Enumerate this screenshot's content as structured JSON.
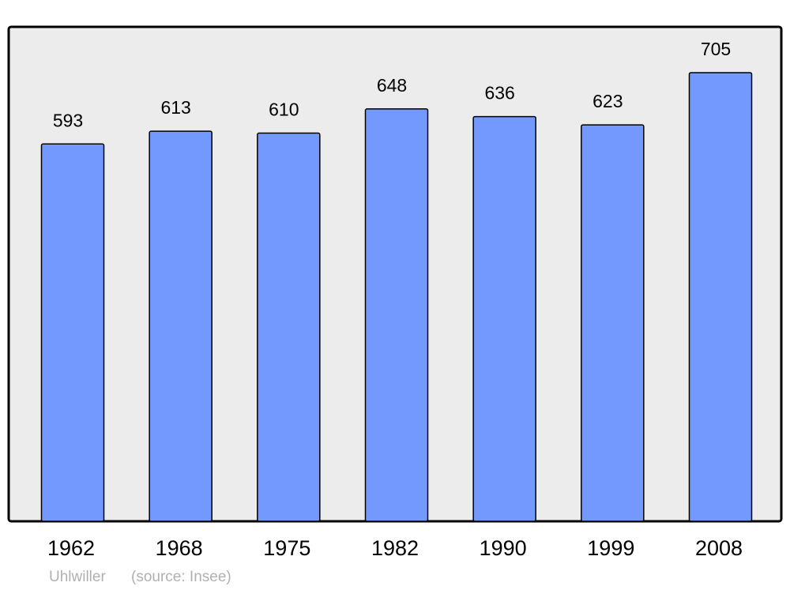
{
  "chart_data": {
    "type": "bar",
    "categories": [
      "1962",
      "1968",
      "1975",
      "1982",
      "1990",
      "1999",
      "2008"
    ],
    "values": [
      593,
      613,
      610,
      648,
      636,
      623,
      705
    ],
    "color": "#7399ff",
    "place": "Uhlwiller",
    "source": "(source: Insee)"
  }
}
